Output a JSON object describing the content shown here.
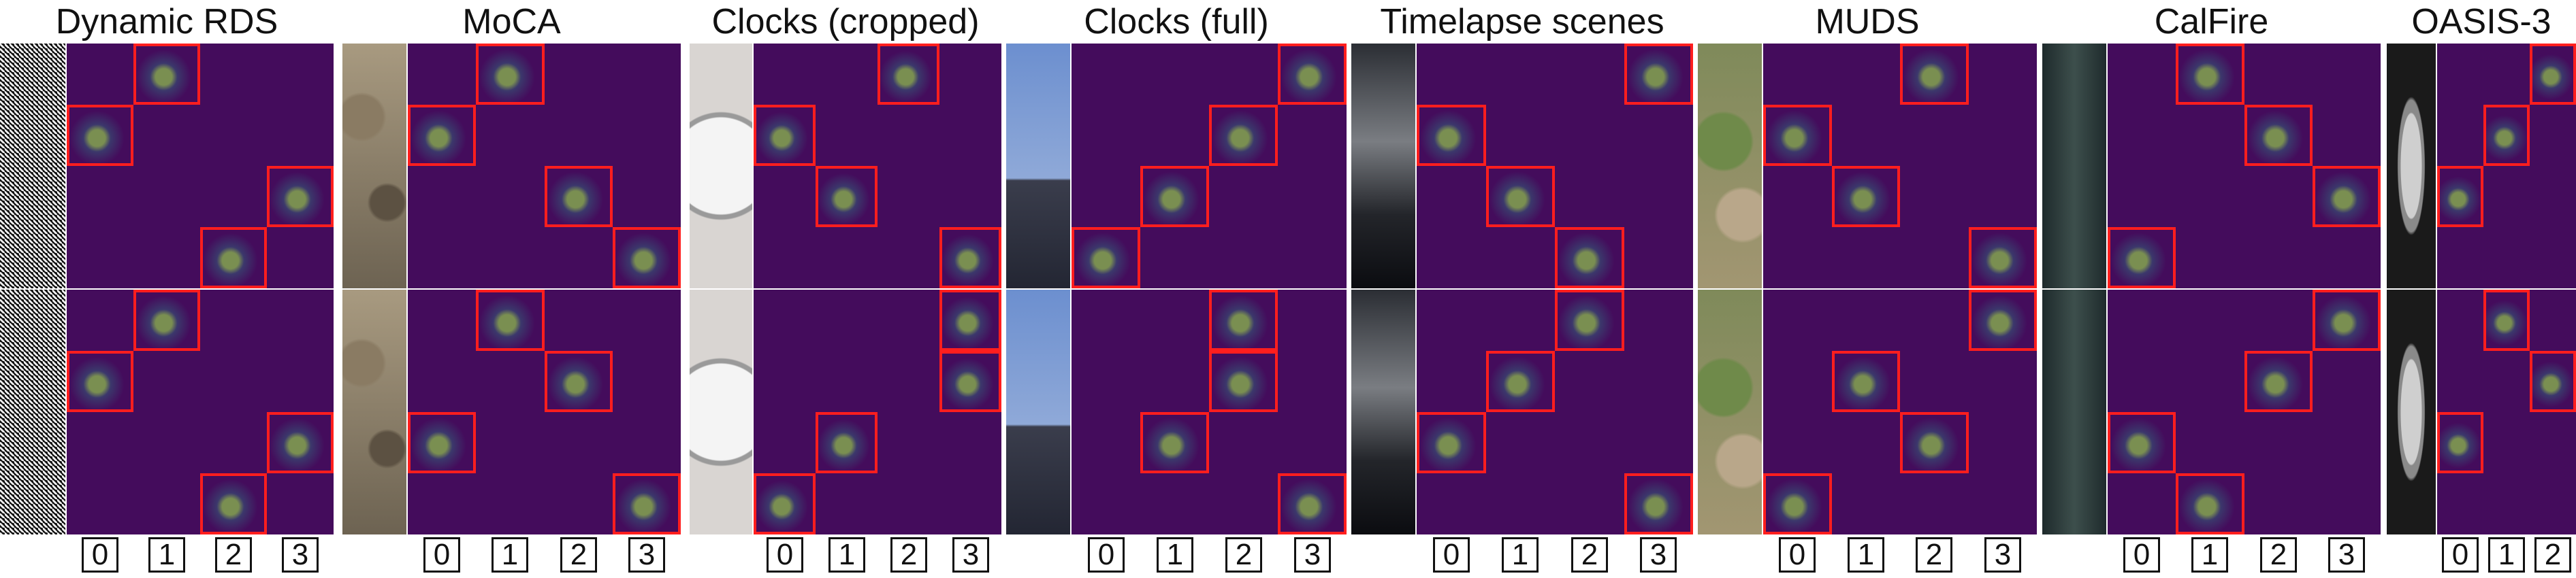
{
  "colors": {
    "heat_background": "#440c5c",
    "frame": "#ff1e1e",
    "hot": "#9ee64a"
  },
  "panels": [
    {
      "title": "Dynamic RDS",
      "source": "noise",
      "cols": 4,
      "indices": [
        "0",
        "1",
        "2",
        "3"
      ],
      "top": [
        1,
        0,
        3,
        2
      ],
      "bottom": [
        1,
        0,
        3,
        2
      ]
    },
    {
      "title": "MoCA",
      "source": "leopard",
      "cols": 4,
      "indices": [
        "0",
        "1",
        "2",
        "3"
      ],
      "top": [
        1,
        0,
        2,
        3
      ],
      "bottom": [
        1,
        2,
        0,
        3
      ]
    },
    {
      "title": "Clocks (cropped)",
      "source": "clock",
      "cols": 4,
      "indices": [
        "0",
        "1",
        "2",
        "3"
      ],
      "top": [
        2,
        0,
        1,
        3
      ],
      "bottom": [
        3,
        3,
        1,
        0
      ]
    },
    {
      "title": "Clocks (full)",
      "source": "bigben",
      "cols": 4,
      "indices": [
        "0",
        "1",
        "2",
        "3"
      ],
      "top": [
        3,
        2,
        1,
        0
      ],
      "bottom": [
        2,
        2,
        1,
        3
      ]
    },
    {
      "title": "Timelapse scenes",
      "source": "sky",
      "cols": 4,
      "indices": [
        "0",
        "1",
        "2",
        "3"
      ],
      "top": [
        3,
        0,
        1,
        2
      ],
      "bottom": [
        2,
        1,
        0,
        3
      ]
    },
    {
      "title": "MUDS",
      "source": "satellite",
      "cols": 4,
      "indices": [
        "0",
        "1",
        "2",
        "3"
      ],
      "top": [
        2,
        0,
        1,
        3
      ],
      "bottom": [
        3,
        1,
        2,
        0
      ]
    },
    {
      "title": "CalFire",
      "source": "terrain",
      "cols": 4,
      "indices": [
        "0",
        "1",
        "2",
        "3"
      ],
      "top": [
        1,
        2,
        3,
        0
      ],
      "bottom": [
        3,
        2,
        0,
        1
      ]
    },
    {
      "title": "OASIS-3",
      "source": "brain",
      "cols": 3,
      "indices": [
        "0",
        "1",
        "2"
      ],
      "top": [
        2,
        1,
        0
      ],
      "bottom": [
        1,
        2,
        0
      ]
    }
  ]
}
